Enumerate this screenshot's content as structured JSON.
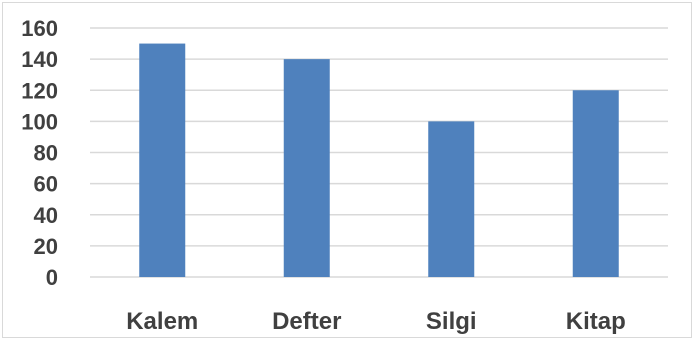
{
  "chart_data": {
    "type": "bar",
    "categories": [
      "Kalem",
      "Defter",
      "Silgi",
      "Kitap"
    ],
    "series": [
      {
        "values": [
          150,
          140,
          100,
          120
        ]
      }
    ],
    "ylim": [
      0,
      160
    ],
    "y_ticks": [
      0,
      20,
      40,
      60,
      80,
      100,
      120,
      140,
      160
    ],
    "grid": true,
    "legend": "none",
    "bar_color": "#4f81bd",
    "grid_color": "#d9d9d9"
  }
}
